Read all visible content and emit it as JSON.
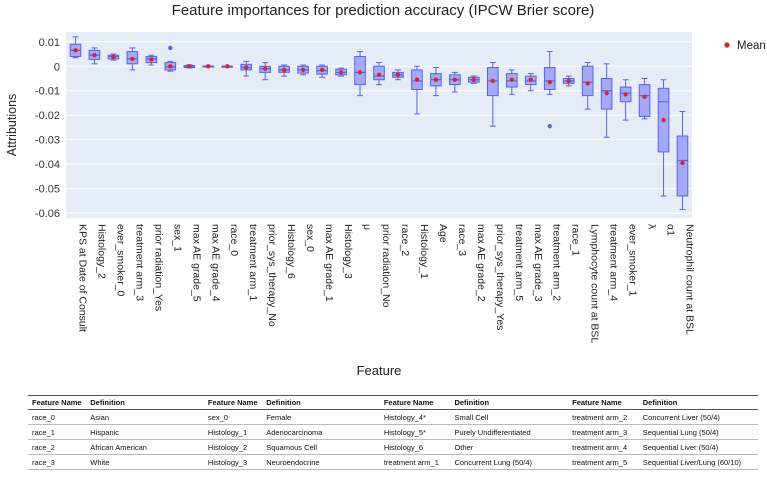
{
  "chart_data": {
    "type": "box",
    "title": "Feature importances for prediction accuracy (IPCW Brier score)",
    "xlabel": "Feature",
    "ylabel": "Attributions",
    "ylim": [
      -0.062,
      0.014
    ],
    "yticks": [
      0.01,
      0,
      -0.01,
      -0.02,
      -0.03,
      -0.04,
      -0.05,
      -0.06
    ],
    "ytick_labels": [
      "0.01",
      "0",
      "-0.01",
      "-0.02",
      "-0.03",
      "-0.04",
      "-0.05",
      "-0.06"
    ],
    "legend": {
      "label": "Mean",
      "position": "top-right"
    },
    "colors": {
      "box_fill": "#a3a9f5",
      "box_edge": "#5a63e8",
      "mean": "#d62728",
      "plot_bg": "#e5ecf6",
      "grid": "#ffffff"
    },
    "features": [
      {
        "name": "KPS at Date of Consult",
        "q1": 0.004,
        "median": 0.0065,
        "q3": 0.009,
        "lo": 0.0035,
        "hi": 0.012,
        "mean": 0.0065,
        "outliers": []
      },
      {
        "name": "Histology_2",
        "q1": 0.0028,
        "median": 0.0045,
        "q3": 0.0065,
        "lo": 0.001,
        "hi": 0.0075,
        "mean": 0.0045,
        "outliers": []
      },
      {
        "name": "ever_smoker_0",
        "q1": 0.003,
        "median": 0.004,
        "q3": 0.0045,
        "lo": 0.0025,
        "hi": 0.005,
        "mean": 0.0038,
        "outliers": []
      },
      {
        "name": "treatment arm_3",
        "q1": 0.001,
        "median": 0.003,
        "q3": 0.006,
        "lo": -0.0015,
        "hi": 0.0075,
        "mean": 0.003,
        "outliers": []
      },
      {
        "name": "prior radiation_Yes",
        "q1": 0.0015,
        "median": 0.003,
        "q3": 0.004,
        "lo": 0.0005,
        "hi": 0.0045,
        "mean": 0.0028,
        "outliers": []
      },
      {
        "name": "sex_1",
        "q1": -0.0015,
        "median": -0.0003,
        "q3": 0.0015,
        "lo": -0.002,
        "hi": 0.002,
        "mean": 0.0,
        "outliers": [
          0.0075
        ]
      },
      {
        "name": "max AE grade_5",
        "q1": -0.0005,
        "median": 0.0,
        "q3": 0.0003,
        "lo": -0.0007,
        "hi": 0.0006,
        "mean": 0.0,
        "outliers": []
      },
      {
        "name": "max AE grade_4",
        "q1": -0.0001,
        "median": 0.0,
        "q3": 0.0001,
        "lo": -0.0002,
        "hi": 0.0002,
        "mean": 0.0,
        "outliers": []
      },
      {
        "name": "race_0",
        "q1": 0.0,
        "median": 0.0,
        "q3": 0.0,
        "lo": 0.0,
        "hi": 0.0,
        "mean": 0.0,
        "outliers": []
      },
      {
        "name": "treatment arm_1",
        "q1": -0.0015,
        "median": -0.0005,
        "q3": 0.0008,
        "lo": -0.004,
        "hi": 0.002,
        "mean": -0.0005,
        "outliers": []
      },
      {
        "name": "prior_sys_therapy_No",
        "q1": -0.0025,
        "median": -0.001,
        "q3": 0.0,
        "lo": -0.0055,
        "hi": 0.0015,
        "mean": -0.001,
        "outliers": []
      },
      {
        "name": "Histology_6",
        "q1": -0.0025,
        "median": -0.0015,
        "q3": 0.0,
        "lo": -0.004,
        "hi": 0.0005,
        "mean": -0.0015,
        "outliers": []
      },
      {
        "name": "sex_0",
        "q1": -0.0028,
        "median": -0.0015,
        "q3": 0.0,
        "lo": -0.0035,
        "hi": 0.0005,
        "mean": -0.0015,
        "outliers": []
      },
      {
        "name": "max AE grade_1",
        "q1": -0.0032,
        "median": -0.0018,
        "q3": 0.0,
        "lo": -0.0045,
        "hi": 0.0005,
        "mean": -0.0015,
        "outliers": []
      },
      {
        "name": "Histology_3",
        "q1": -0.0035,
        "median": -0.0025,
        "q3": -0.0012,
        "lo": -0.004,
        "hi": -0.0008,
        "mean": -0.0025,
        "outliers": []
      },
      {
        "name": "μ",
        "q1": -0.0075,
        "median": -0.0025,
        "q3": 0.004,
        "lo": -0.012,
        "hi": 0.006,
        "mean": -0.0025,
        "outliers": []
      },
      {
        "name": "prior radiation_No",
        "q1": -0.0055,
        "median": -0.004,
        "q3": 0.0,
        "lo": -0.0075,
        "hi": 0.0015,
        "mean": -0.0035,
        "outliers": []
      },
      {
        "name": "race_2",
        "q1": -0.0045,
        "median": -0.0035,
        "q3": -0.0025,
        "lo": -0.0055,
        "hi": -0.0015,
        "mean": -0.0035,
        "outliers": []
      },
      {
        "name": "Histology_1",
        "q1": -0.0095,
        "median": -0.006,
        "q3": -0.0015,
        "lo": -0.0195,
        "hi": 0.0,
        "mean": -0.0055,
        "outliers": []
      },
      {
        "name": "Age",
        "q1": -0.008,
        "median": -0.0055,
        "q3": -0.003,
        "lo": -0.012,
        "hi": -0.0005,
        "mean": -0.0055,
        "outliers": []
      },
      {
        "name": "race_3",
        "q1": -0.0075,
        "median": -0.0055,
        "q3": -0.0035,
        "lo": -0.0105,
        "hi": -0.0025,
        "mean": -0.0055,
        "outliers": []
      },
      {
        "name": "max AE grade_2",
        "q1": -0.0065,
        "median": -0.0055,
        "q3": -0.0045,
        "lo": -0.007,
        "hi": -0.004,
        "mean": -0.0055,
        "outliers": []
      },
      {
        "name": "prior_sys_therapy_Yes",
        "q1": -0.012,
        "median": -0.006,
        "q3": -0.0005,
        "lo": -0.0245,
        "hi": 0.0015,
        "mean": -0.006,
        "outliers": []
      },
      {
        "name": "treatment arm_5",
        "q1": -0.0085,
        "median": -0.006,
        "q3": -0.003,
        "lo": -0.0115,
        "hi": -0.0015,
        "mean": -0.0055,
        "outliers": []
      },
      {
        "name": "max AE grade_3",
        "q1": -0.0075,
        "median": -0.006,
        "q3": -0.004,
        "lo": -0.01,
        "hi": -0.003,
        "mean": -0.0055,
        "outliers": []
      },
      {
        "name": "treatment arm_2",
        "q1": -0.0095,
        "median": -0.006,
        "q3": -0.0005,
        "lo": -0.0115,
        "hi": 0.006,
        "mean": -0.0065,
        "outliers": [
          -0.0245
        ]
      },
      {
        "name": "race_1",
        "q1": -0.007,
        "median": -0.006,
        "q3": -0.005,
        "lo": -0.008,
        "hi": -0.004,
        "mean": -0.006,
        "outliers": []
      },
      {
        "name": "Lymphocyte count at BSL",
        "q1": -0.012,
        "median": -0.0065,
        "q3": 0.0,
        "lo": -0.0175,
        "hi": 0.0015,
        "mean": -0.007,
        "outliers": []
      },
      {
        "name": "treatment arm_4",
        "q1": -0.0175,
        "median": -0.01,
        "q3": -0.005,
        "lo": -0.029,
        "hi": 0.001,
        "mean": -0.011,
        "outliers": []
      },
      {
        "name": "ever_smoker_1",
        "q1": -0.0145,
        "median": -0.011,
        "q3": -0.0085,
        "lo": -0.022,
        "hi": -0.0055,
        "mean": -0.0115,
        "outliers": []
      },
      {
        "name": "λ",
        "q1": -0.0205,
        "median": -0.012,
        "q3": -0.0075,
        "lo": -0.0215,
        "hi": -0.005,
        "mean": -0.0125,
        "outliers": []
      },
      {
        "name": "α1",
        "q1": -0.035,
        "median": -0.0145,
        "q3": -0.009,
        "lo": -0.053,
        "hi": -0.0055,
        "mean": -0.022,
        "outliers": []
      },
      {
        "name": "Neutrophil count at BSL",
        "q1": -0.053,
        "median": -0.0385,
        "q3": -0.0285,
        "lo": -0.0585,
        "hi": -0.0185,
        "mean": -0.0395,
        "outliers": []
      }
    ]
  },
  "table": {
    "headers": [
      "Feature Name",
      "Definition",
      "Feature Name",
      "Definition",
      "Feature Name",
      "Definition",
      "Feature Name",
      "Definition"
    ],
    "rows": [
      [
        "race_0",
        "Asian",
        "sex_0",
        "Female",
        "Histology_4*",
        "Small Cell",
        "treatment arm_2",
        "Concurrent Liver (50/4)"
      ],
      [
        "race_1",
        "Hispanic",
        "Histology_1",
        "Adenocarcinoma",
        "Histology_5*",
        "Purely Undifferentiated",
        "treatment arm_3",
        "Sequential Lung (50/4)"
      ],
      [
        "race_2",
        "African American",
        "Histology_2",
        "Squamous Cell",
        "Histology_6",
        "Other",
        "treatment arm_4",
        "Sequential Liver (50/4)"
      ],
      [
        "race_3",
        "White",
        "Histology_3",
        "Neuroendocrine",
        "treatment arm_1",
        "Concurrent Lung (50/4)",
        "treatment arm_5",
        "Sequential Liver/Lung (60/10)"
      ]
    ]
  }
}
